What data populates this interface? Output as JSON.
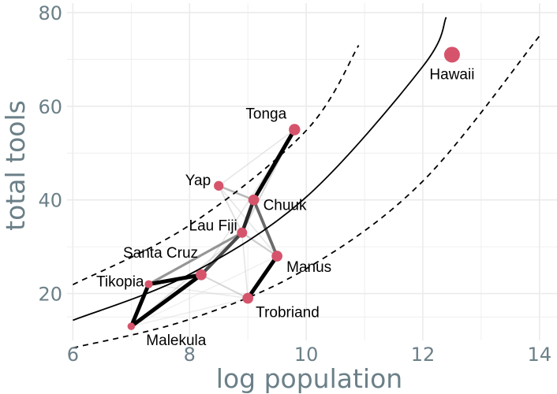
{
  "chart_data": {
    "type": "scatter",
    "title": "",
    "xlabel": "log  population",
    "ylabel": "total  tools",
    "xlim": [
      5.9,
      14.3
    ],
    "ylim": [
      10,
      82
    ],
    "xticks": [
      6,
      8,
      10,
      12,
      14
    ],
    "yticks": [
      20,
      40,
      60,
      80
    ],
    "grid": true,
    "legend": "none",
    "point_color": "#d6546b",
    "points": [
      {
        "name": "Malekula",
        "x": 7.0,
        "y": 13,
        "size": 0.25
      },
      {
        "name": "Tikopia",
        "x": 7.3,
        "y": 22,
        "size": 0.3
      },
      {
        "name": "Santa Cruz",
        "x": 8.2,
        "y": 24,
        "size": 0.55
      },
      {
        "name": "Yap",
        "x": 8.5,
        "y": 43,
        "size": 0.45
      },
      {
        "name": "Lau Fiji",
        "x": 8.9,
        "y": 33,
        "size": 0.5
      },
      {
        "name": "Trobriand",
        "x": 9.0,
        "y": 19,
        "size": 0.55
      },
      {
        "name": "Chuuk",
        "x": 9.1,
        "y": 40,
        "size": 0.55
      },
      {
        "name": "Manus",
        "x": 9.5,
        "y": 28,
        "size": 0.55
      },
      {
        "name": "Tonga",
        "x": 9.8,
        "y": 55,
        "size": 0.6
      },
      {
        "name": "Hawaii",
        "x": 12.5,
        "y": 71,
        "size": 1.0
      }
    ],
    "edges": [
      {
        "a": "Malekula",
        "b": "Tikopia",
        "strength": 1.0
      },
      {
        "a": "Malekula",
        "b": "Santa Cruz",
        "strength": 1.0
      },
      {
        "a": "Tikopia",
        "b": "Santa Cruz",
        "strength": 1.0
      },
      {
        "a": "Tikopia",
        "b": "Lau Fiji",
        "strength": 0.55
      },
      {
        "a": "Santa Cruz",
        "b": "Lau Fiji",
        "strength": 0.8
      },
      {
        "a": "Santa Cruz",
        "b": "Trobriand",
        "strength": 0.25
      },
      {
        "a": "Santa Cruz",
        "b": "Tonga",
        "strength": 0.15
      },
      {
        "a": "Malekula",
        "b": "Lau Fiji",
        "strength": 0.2
      },
      {
        "a": "Malekula",
        "b": "Trobriand",
        "strength": 0.1
      },
      {
        "a": "Malekula",
        "b": "Manus",
        "strength": 0.08
      },
      {
        "a": "Lau Fiji",
        "b": "Chuuk",
        "strength": 0.9
      },
      {
        "a": "Lau Fiji",
        "b": "Yap",
        "strength": 0.2
      },
      {
        "a": "Lau Fiji",
        "b": "Tonga",
        "strength": 0.25
      },
      {
        "a": "Lau Fiji",
        "b": "Manus",
        "strength": 0.3
      },
      {
        "a": "Chuuk",
        "b": "Tonga",
        "strength": 1.0
      },
      {
        "a": "Chuuk",
        "b": "Yap",
        "strength": 0.4
      },
      {
        "a": "Chuuk",
        "b": "Manus",
        "strength": 0.7
      },
      {
        "a": "Yap",
        "b": "Tonga",
        "strength": 0.15
      },
      {
        "a": "Yap",
        "b": "Manus",
        "strength": 0.15
      },
      {
        "a": "Manus",
        "b": "Trobriand",
        "strength": 1.0
      },
      {
        "a": "Trobriand",
        "b": "Lau Fiji",
        "strength": 0.15
      },
      {
        "a": "Tikopia",
        "b": "Trobriand",
        "strength": 0.12
      }
    ],
    "fit_curves": [
      {
        "style": "solid",
        "points": [
          [
            6.0,
            14.3
          ],
          [
            8.0,
            24.1
          ],
          [
            10.0,
            40.6
          ],
          [
            12.0,
            68.5
          ],
          [
            12.4,
            79.0
          ]
        ]
      },
      {
        "style": "dashed",
        "points": [
          [
            6.0,
            21.9
          ],
          [
            8.0,
            34.6
          ],
          [
            10.0,
            54.8
          ],
          [
            10.9,
            73.0
          ]
        ]
      },
      {
        "style": "dashed",
        "points": [
          [
            6.0,
            8.4
          ],
          [
            8.0,
            14.5
          ],
          [
            10.0,
            25.3
          ],
          [
            12.0,
            44.0
          ],
          [
            14.0,
            75.0
          ]
        ]
      }
    ]
  }
}
